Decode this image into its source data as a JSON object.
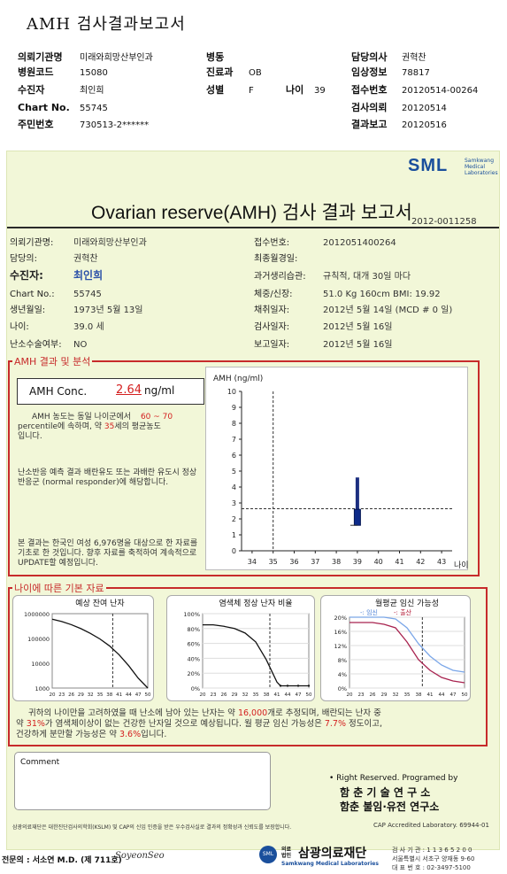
{
  "doc_title": "AMH 검사결과보고서",
  "header": {
    "col1": [
      {
        "label": "의뢰기관명",
        "value": "미래와희망산부인과"
      },
      {
        "label": "병원코드",
        "value": "15080"
      },
      {
        "label": "수진자",
        "value": "최인희"
      },
      {
        "label": "Chart No.",
        "value": "55745"
      },
      {
        "label": "주민번호",
        "value": "730513-2******"
      }
    ],
    "col2": [
      {
        "label": "병동",
        "value": ""
      },
      {
        "label": "진료과",
        "value": "OB"
      },
      {
        "label": "성별",
        "value": "F"
      }
    ],
    "age": {
      "label": "나이",
      "value": "39"
    },
    "col3": [
      {
        "label": "담당의사",
        "value": "권혁찬"
      },
      {
        "label": "임상정보",
        "value": "78817"
      },
      {
        "label": "접수번호",
        "value": "20120514-00264"
      },
      {
        "label": "검사의뢰",
        "value": "20120514"
      },
      {
        "label": "결과보고",
        "value": "20120516"
      }
    ]
  },
  "sheet": {
    "logo": "SML",
    "logo_sub": "Samkwang Medical Laboratories",
    "title": "Ovarian reserve(AMH) 검사 결과 보고서",
    "report_id": "2012-0011258",
    "left": [
      {
        "label": "의뢰기관명:",
        "value": "미래와희망산부인과"
      },
      {
        "label": "담당의:",
        "value": "권혁찬"
      },
      {
        "label": "수진자:",
        "value": "최인희"
      },
      {
        "label": "Chart No.:",
        "value": "55745"
      },
      {
        "label": "생년월일:",
        "value": "1973년 5월 13일"
      },
      {
        "label": "나이:",
        "value": "39.0 세"
      },
      {
        "label": "난소수술여부:",
        "value": "NO"
      }
    ],
    "right": [
      {
        "label": "접수번호:",
        "value": "2012051400264"
      },
      {
        "label": "최종월경일:",
        "value": ""
      },
      {
        "label": "과거생리습관:",
        "value": "규칙적, 대개   30일 마다"
      },
      {
        "label": "체중/신장:",
        "value": "51.0 Kg     160cm     BMI:  19.92"
      },
      {
        "label": "채취일자:",
        "value": "2012년 5월 14일    (MCD #  0 일)"
      },
      {
        "label": "검사일자:",
        "value": "2012년 5월 16일"
      },
      {
        "label": "보고일자:",
        "value": "2012년 5월 16일"
      }
    ]
  },
  "amh_section": {
    "title": "AMH 결과 및 분석",
    "conc_label": "AMH Conc.",
    "conc_value": "2.64",
    "conc_unit": "ng/ml",
    "p1_a": "AMH 농도는 동일 나이군에서",
    "p1_range": "60 ~  70",
    "p1_b": "percentile에 속하며,  약",
    "p1_age": "35",
    "p1_c": "세의 평균농도",
    "p1_d": "입니다.",
    "p2": "난소반응 예측 결과 배란유도 또는 과배란 유도시 정상반응군 (normal responder)에 해당합니다.",
    "p3": "본 결과는 한국인 여성 6,976명을 대상으로 한 자료를 기초로 한 것입니다. 향후 자료를 축적하여 계속적으로 UPDATE할 예정입니다."
  },
  "chart_data": [
    {
      "type": "box",
      "title": "",
      "ylabel": "AMH (ng/ml)",
      "xlabel": "나이",
      "x_ticks": [
        34,
        35,
        36,
        37,
        38,
        39,
        40,
        41,
        42,
        43
      ],
      "y_ticks": [
        0,
        1,
        2,
        3,
        4,
        5,
        6,
        7,
        8,
        9,
        10
      ],
      "xlim": [
        33.5,
        43.5
      ],
      "ylim": [
        0,
        10
      ],
      "box": {
        "x": 39,
        "q1": 1.6,
        "q3": 2.6,
        "whisker_low": 1.6,
        "whisker_high": 4.6
      },
      "patient": {
        "age": 39,
        "amh": 2.64
      },
      "reference_age": 35
    },
    {
      "type": "line",
      "title": "예상 잔여 난자",
      "x_ticks": [
        "20",
        "23",
        "26",
        "29",
        "32",
        "35",
        "38",
        "41",
        "44",
        "47",
        "50"
      ],
      "y_ticks": [
        "1000000",
        "100000",
        "10000",
        "1000"
      ],
      "y_scale": "log",
      "x": [
        20,
        23,
        26,
        29,
        32,
        35,
        38,
        41,
        44,
        47,
        50
      ],
      "y": [
        600000,
        480000,
        360000,
        250000,
        160000,
        95000,
        50000,
        22000,
        8000,
        2500,
        1000
      ],
      "marker_x": 39
    },
    {
      "type": "line",
      "title": "염색체 정상 난자 비율",
      "x_ticks": [
        "20",
        "23",
        "26",
        "29",
        "32",
        "35",
        "38",
        "41",
        "44",
        "47",
        "50"
      ],
      "y_ticks": [
        "100%",
        "80%",
        "60%",
        "40%",
        "20%",
        "0%"
      ],
      "x": [
        20,
        23,
        26,
        29,
        32,
        35,
        38,
        41,
        42,
        44,
        47,
        50
      ],
      "y": [
        85,
        85,
        83,
        80,
        74,
        62,
        38,
        8,
        3,
        3,
        3,
        3
      ],
      "marker_x": 39
    },
    {
      "type": "line",
      "title": "월평균 임신 가능성",
      "legend": [
        "임신",
        "출산"
      ],
      "x_ticks": [
        "20",
        "23",
        "26",
        "29",
        "32",
        "35",
        "38",
        "41",
        "44",
        "47",
        "50"
      ],
      "y_ticks": [
        "20%",
        "16%",
        "12%",
        "8%",
        "4%",
        "0%"
      ],
      "series": [
        {
          "name": "임신",
          "x": [
            20,
            23,
            26,
            29,
            32,
            35,
            38,
            41,
            44,
            47,
            50
          ],
          "values": [
            20,
            20,
            20,
            20,
            19.5,
            17,
            12.5,
            9,
            6.5,
            5,
            4.5
          ]
        },
        {
          "name": "출산",
          "x": [
            20,
            23,
            26,
            29,
            32,
            35,
            38,
            41,
            44,
            47,
            50
          ],
          "values": [
            18.5,
            18.5,
            18.5,
            18,
            17,
            13,
            8,
            5,
            3,
            2,
            1.5
          ]
        }
      ],
      "marker_x": 39
    }
  ],
  "baseline": {
    "title": "나이에 따른 기본 자료",
    "s1_a": "귀하의 나이만을 고려하였을 때 난소에 남아 있는 난자는 약",
    "s1_eggs": "16,000",
    "s1_b": "개로 추정되며, 배란되는 난자 중",
    "s2_a": "약",
    "s2_pct": "31%",
    "s2_b": "가 염색체이상이 없는 건강한 난자일 것으로 예상됩니다. 월 평균 임신 가능성은",
    "s2_preg": "7.7%",
    "s2_c": "정도이고,",
    "s3_a": "건강하게 분만할 가능성은 약",
    "s3_birth": "3.6%",
    "s3_b": "입니다."
  },
  "comment_label": "Comment",
  "rights": {
    "line1": "• Right Reserved. Programed by",
    "line2": "함 춘 기 술 연 구 소",
    "line3": "함춘 불임·유전 연구소"
  },
  "footer": {
    "accreditation": "삼광의료재단은 대한진단검사의학회(KSLM) 및 CAP의 신임 인증을 받은 우수검사실로 결과의 정확성과 신뢰도를 보장합니다.",
    "cap": "CAP  Accredited  Laboratory.  69944-01",
    "specialist": "전문의 : 서소연 M.D. (제 711호)",
    "signature": "SoyeonSeo",
    "foundation_tag": "의료법인",
    "foundation": "삼광의료재단",
    "foundation_sub": "Samkwang Medical Laboratories",
    "contact1": "검 사 기 관 : 1 1 3 6 5 2 0 0",
    "contact2": "서울특별시 서초구 양재동 9-60",
    "contact3": "대 표 번 호 : 02-3497-5100"
  }
}
